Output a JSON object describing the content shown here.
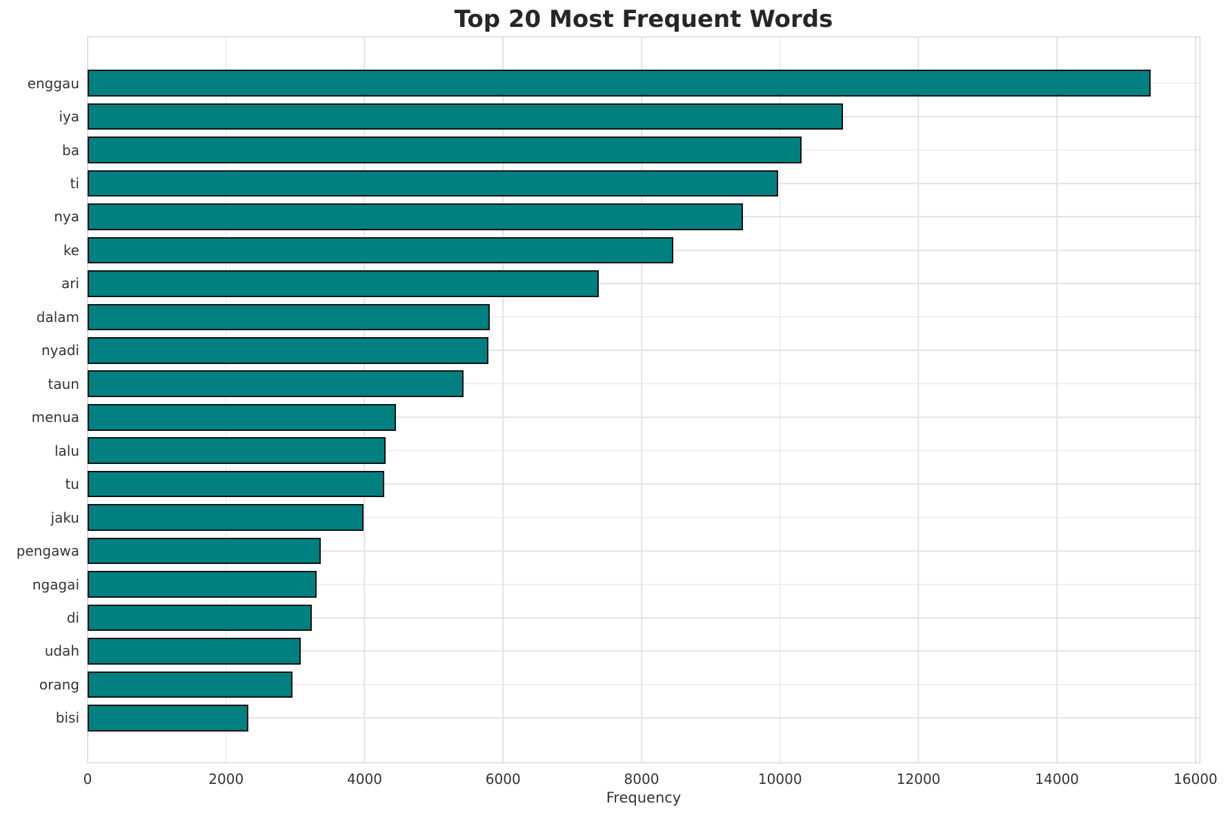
{
  "chart_data": {
    "type": "bar",
    "orientation": "horizontal",
    "title": "Top 20 Most Frequent Words",
    "xlabel": "Frequency",
    "ylabel": "",
    "categories": [
      "enggau",
      "iya",
      "ba",
      "ti",
      "nya",
      "ke",
      "ari",
      "dalam",
      "nyadi",
      "taun",
      "menua",
      "lalu",
      "tu",
      "jaku",
      "pengawa",
      "ngagai",
      "di",
      "udah",
      "orang",
      "bisi"
    ],
    "values": [
      15355,
      10910,
      10310,
      9970,
      9460,
      8460,
      7380,
      5810,
      5790,
      5425,
      4455,
      4305,
      4280,
      3985,
      3365,
      3305,
      3240,
      3080,
      2960,
      2320
    ],
    "xticks": [
      0,
      2000,
      4000,
      6000,
      8000,
      10000,
      12000,
      14000,
      16000
    ],
    "xlim": [
      0,
      16060
    ],
    "grid": true,
    "legend": null,
    "bar_color": "#008080",
    "bar_edge_color": "#111111",
    "grid_color": "#e2e2e2",
    "spine_color": "#cccccc",
    "text_color": "#333333",
    "title_color": "#262626"
  }
}
